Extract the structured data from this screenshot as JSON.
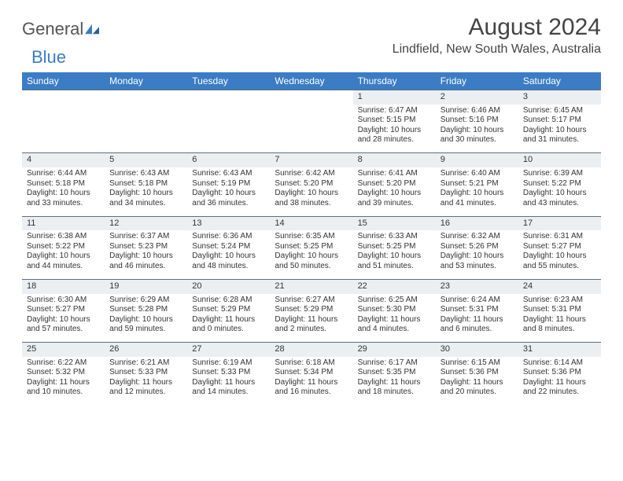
{
  "logo": {
    "text1": "General",
    "text2": "Blue"
  },
  "header": {
    "month_title": "August 2024",
    "location": "Lindfield, New South Wales, Australia"
  },
  "colors": {
    "header_bg": "#3b7cc4",
    "header_fg": "#ffffff",
    "daynum_bg": "#eceff1",
    "daynum_border": "#5a6f82",
    "text": "#333333",
    "logo_gray": "#555555",
    "logo_blue": "#3b7cc4",
    "page_bg": "#ffffff"
  },
  "day_headers": [
    "Sunday",
    "Monday",
    "Tuesday",
    "Wednesday",
    "Thursday",
    "Friday",
    "Saturday"
  ],
  "labels": {
    "sunrise": "Sunrise:",
    "sunset": "Sunset:",
    "daylight": "Daylight:"
  },
  "weeks": [
    [
      null,
      null,
      null,
      null,
      {
        "n": "1",
        "sunrise": "6:47 AM",
        "sunset": "5:15 PM",
        "daylight": "10 hours and 28 minutes."
      },
      {
        "n": "2",
        "sunrise": "6:46 AM",
        "sunset": "5:16 PM",
        "daylight": "10 hours and 30 minutes."
      },
      {
        "n": "3",
        "sunrise": "6:45 AM",
        "sunset": "5:17 PM",
        "daylight": "10 hours and 31 minutes."
      }
    ],
    [
      {
        "n": "4",
        "sunrise": "6:44 AM",
        "sunset": "5:18 PM",
        "daylight": "10 hours and 33 minutes."
      },
      {
        "n": "5",
        "sunrise": "6:43 AM",
        "sunset": "5:18 PM",
        "daylight": "10 hours and 34 minutes."
      },
      {
        "n": "6",
        "sunrise": "6:43 AM",
        "sunset": "5:19 PM",
        "daylight": "10 hours and 36 minutes."
      },
      {
        "n": "7",
        "sunrise": "6:42 AM",
        "sunset": "5:20 PM",
        "daylight": "10 hours and 38 minutes."
      },
      {
        "n": "8",
        "sunrise": "6:41 AM",
        "sunset": "5:20 PM",
        "daylight": "10 hours and 39 minutes."
      },
      {
        "n": "9",
        "sunrise": "6:40 AM",
        "sunset": "5:21 PM",
        "daylight": "10 hours and 41 minutes."
      },
      {
        "n": "10",
        "sunrise": "6:39 AM",
        "sunset": "5:22 PM",
        "daylight": "10 hours and 43 minutes."
      }
    ],
    [
      {
        "n": "11",
        "sunrise": "6:38 AM",
        "sunset": "5:22 PM",
        "daylight": "10 hours and 44 minutes."
      },
      {
        "n": "12",
        "sunrise": "6:37 AM",
        "sunset": "5:23 PM",
        "daylight": "10 hours and 46 minutes."
      },
      {
        "n": "13",
        "sunrise": "6:36 AM",
        "sunset": "5:24 PM",
        "daylight": "10 hours and 48 minutes."
      },
      {
        "n": "14",
        "sunrise": "6:35 AM",
        "sunset": "5:25 PM",
        "daylight": "10 hours and 50 minutes."
      },
      {
        "n": "15",
        "sunrise": "6:33 AM",
        "sunset": "5:25 PM",
        "daylight": "10 hours and 51 minutes."
      },
      {
        "n": "16",
        "sunrise": "6:32 AM",
        "sunset": "5:26 PM",
        "daylight": "10 hours and 53 minutes."
      },
      {
        "n": "17",
        "sunrise": "6:31 AM",
        "sunset": "5:27 PM",
        "daylight": "10 hours and 55 minutes."
      }
    ],
    [
      {
        "n": "18",
        "sunrise": "6:30 AM",
        "sunset": "5:27 PM",
        "daylight": "10 hours and 57 minutes."
      },
      {
        "n": "19",
        "sunrise": "6:29 AM",
        "sunset": "5:28 PM",
        "daylight": "10 hours and 59 minutes."
      },
      {
        "n": "20",
        "sunrise": "6:28 AM",
        "sunset": "5:29 PM",
        "daylight": "11 hours and 0 minutes."
      },
      {
        "n": "21",
        "sunrise": "6:27 AM",
        "sunset": "5:29 PM",
        "daylight": "11 hours and 2 minutes."
      },
      {
        "n": "22",
        "sunrise": "6:25 AM",
        "sunset": "5:30 PM",
        "daylight": "11 hours and 4 minutes."
      },
      {
        "n": "23",
        "sunrise": "6:24 AM",
        "sunset": "5:31 PM",
        "daylight": "11 hours and 6 minutes."
      },
      {
        "n": "24",
        "sunrise": "6:23 AM",
        "sunset": "5:31 PM",
        "daylight": "11 hours and 8 minutes."
      }
    ],
    [
      {
        "n": "25",
        "sunrise": "6:22 AM",
        "sunset": "5:32 PM",
        "daylight": "11 hours and 10 minutes."
      },
      {
        "n": "26",
        "sunrise": "6:21 AM",
        "sunset": "5:33 PM",
        "daylight": "11 hours and 12 minutes."
      },
      {
        "n": "27",
        "sunrise": "6:19 AM",
        "sunset": "5:33 PM",
        "daylight": "11 hours and 14 minutes."
      },
      {
        "n": "28",
        "sunrise": "6:18 AM",
        "sunset": "5:34 PM",
        "daylight": "11 hours and 16 minutes."
      },
      {
        "n": "29",
        "sunrise": "6:17 AM",
        "sunset": "5:35 PM",
        "daylight": "11 hours and 18 minutes."
      },
      {
        "n": "30",
        "sunrise": "6:15 AM",
        "sunset": "5:36 PM",
        "daylight": "11 hours and 20 minutes."
      },
      {
        "n": "31",
        "sunrise": "6:14 AM",
        "sunset": "5:36 PM",
        "daylight": "11 hours and 22 minutes."
      }
    ]
  ]
}
